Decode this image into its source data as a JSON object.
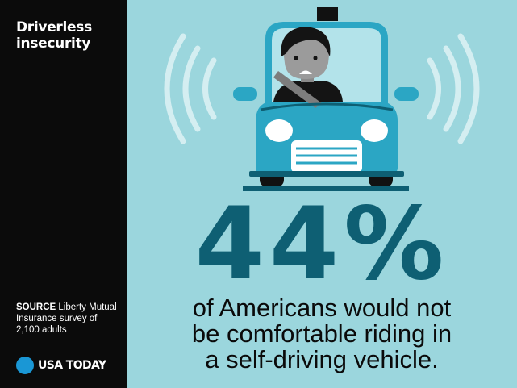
{
  "title": "Driverless insecurity",
  "source": {
    "label": "SOURCE",
    "text": "Liberty Mutual Insurance survey of 2,100 adults"
  },
  "brand": "USA TODAY",
  "stat": {
    "value": "44%",
    "line1": "of Americans would not",
    "line2": "be comfortable riding in",
    "line3": "a self-driving vehicle."
  },
  "colors": {
    "sidebar": "#0b0b0b",
    "background": "#9bd6dd",
    "accent": "#0e5f73",
    "car": "#2ba6c4",
    "brand_dot": "#1a97d5"
  },
  "icons": {
    "car": "self-driving-car-icon",
    "signal": "signal-waves-icon",
    "passenger": "worried-passenger-icon"
  }
}
